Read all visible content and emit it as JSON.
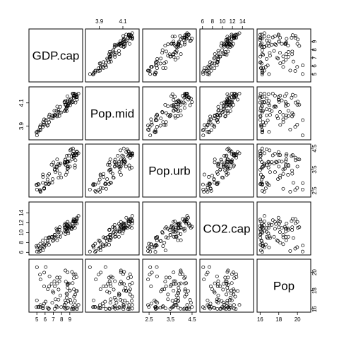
{
  "chart_data": {
    "type": "scatter-matrix",
    "variables": [
      {
        "name": "GDP.cap",
        "range": [
          4.3,
          10.3
        ],
        "ticks": [
          5,
          6,
          7,
          8,
          9
        ]
      },
      {
        "name": "Pop.mid",
        "range": [
          3.8,
          4.22
        ],
        "ticks": [
          3.9,
          4.1
        ]
      },
      {
        "name": "Pop.urb",
        "range": [
          2.3,
          4.6
        ],
        "ticks": [
          2.5,
          3.5,
          4.5
        ]
      },
      {
        "name": "CO2.cap",
        "range": [
          5.9,
          15.8
        ],
        "ticks": [
          6,
          8,
          10,
          12,
          14
        ]
      },
      {
        "name": "Pop",
        "range": [
          15.9,
          21.2
        ],
        "ticks": [
          16,
          18,
          20
        ]
      }
    ],
    "tick_labels": {
      "0": [
        "5",
        "6",
        "7",
        "8",
        "9"
      ],
      "1": [
        "3.9",
        "4.1"
      ],
      "2": [
        "2.5",
        "3.5",
        "4.5"
      ],
      "3": [
        "6",
        "8",
        "10",
        "12",
        "14"
      ],
      "4": [
        "16",
        "18",
        "20"
      ]
    },
    "axes": {
      "top": [
        1,
        3
      ],
      "bottom": [
        0,
        2,
        4
      ],
      "left": [
        1,
        3
      ],
      "right": [
        0,
        2,
        4
      ]
    },
    "n_points": 85,
    "grid": false
  }
}
